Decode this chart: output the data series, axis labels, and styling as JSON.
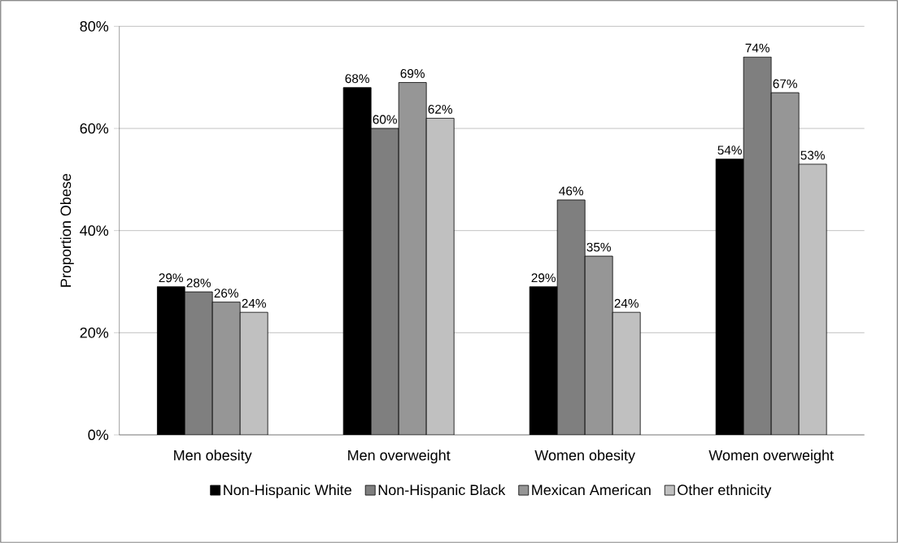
{
  "chart_data": {
    "type": "bar",
    "ylabel": "Proportion Obese",
    "categories": [
      "Men obesity",
      "Men overweight",
      "Women obesity",
      "Women overweight"
    ],
    "series": [
      {
        "name": "Non-Hispanic White",
        "color": "#000000",
        "values": [
          29,
          68,
          29,
          54
        ],
        "value_labels": [
          "29%",
          "68%",
          "29%",
          "54%"
        ]
      },
      {
        "name": "Non-Hispanic Black",
        "color": "#7f7f7f",
        "values": [
          28,
          60,
          46,
          74
        ],
        "value_labels": [
          "28%",
          "60%",
          "46%",
          "74%"
        ]
      },
      {
        "name": "Mexican American",
        "color": "#969696",
        "values": [
          26,
          69,
          35,
          67
        ],
        "value_labels": [
          "26%",
          "69%",
          "35%",
          "67%"
        ]
      },
      {
        "name": "Other ethnicity",
        "color": "#c0c0c0",
        "values": [
          24,
          62,
          24,
          53
        ],
        "value_labels": [
          "24%",
          "62%",
          "24%",
          "53%"
        ]
      }
    ],
    "ylim": [
      0,
      80
    ],
    "yticks": [
      {
        "value": 0,
        "label": "0%"
      },
      {
        "value": 20,
        "label": "20%"
      },
      {
        "value": 40,
        "label": "40%"
      },
      {
        "value": 60,
        "label": "60%"
      },
      {
        "value": 80,
        "label": "80%"
      }
    ],
    "grid": "y",
    "legend": "bottom"
  }
}
